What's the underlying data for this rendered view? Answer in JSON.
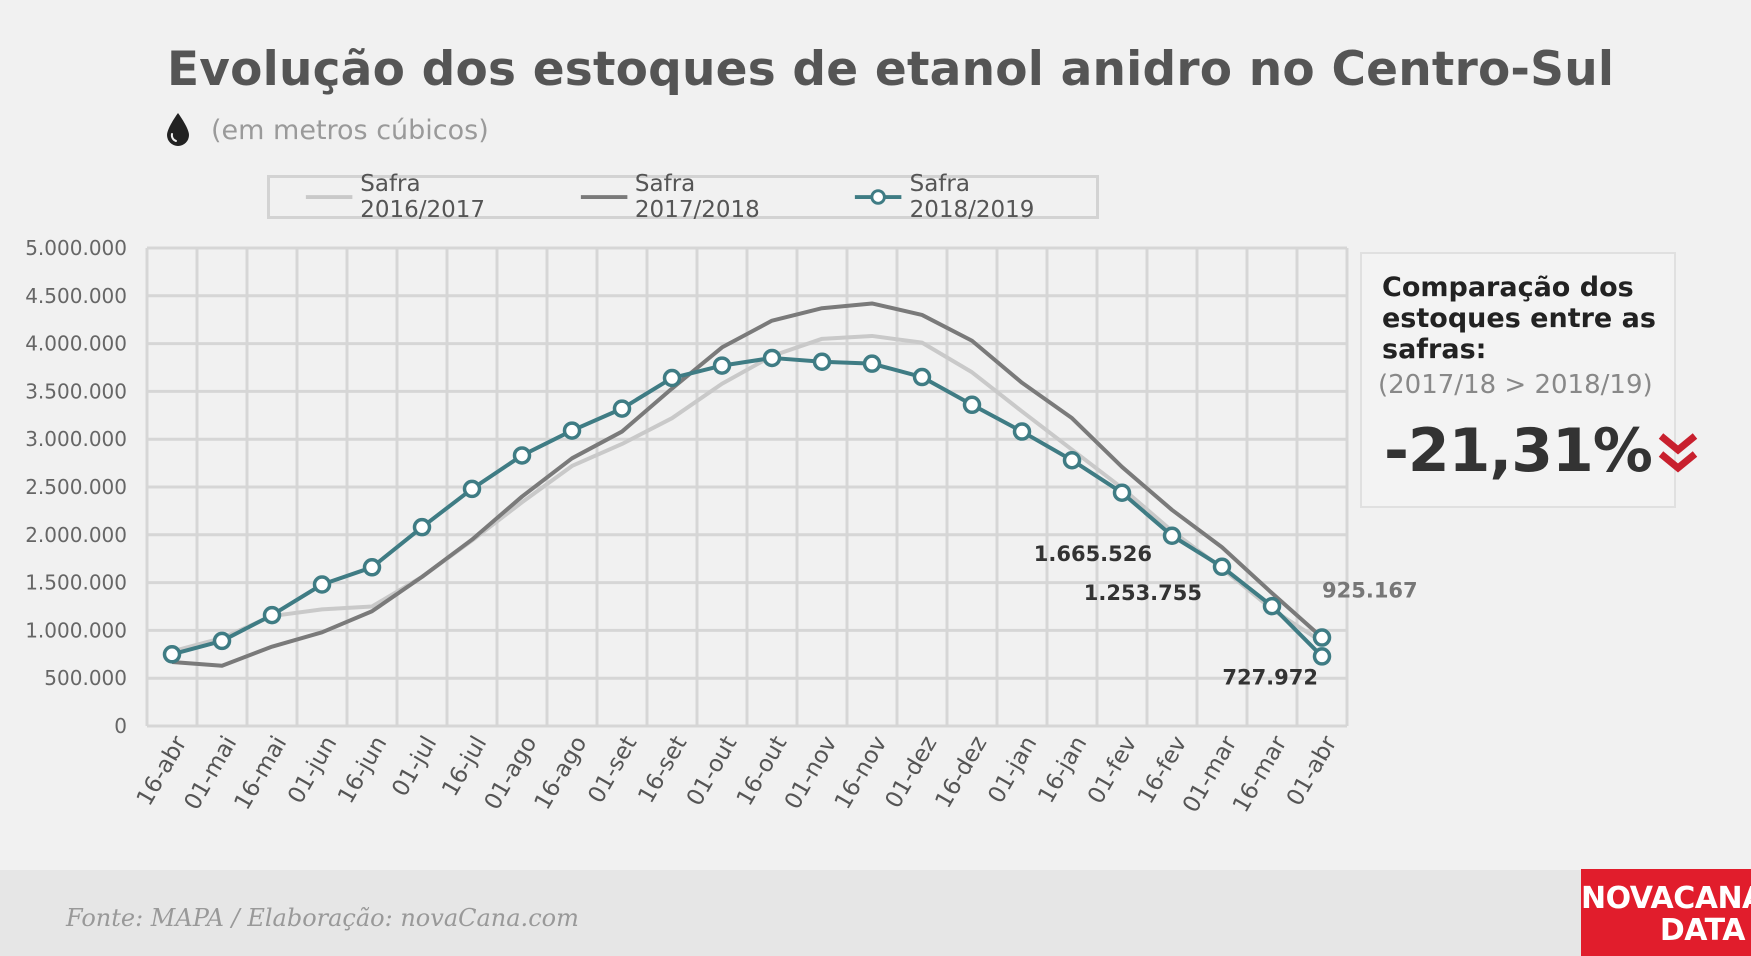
{
  "title": "Evolução dos estoques de etanol anidro no Centro-Sul",
  "subtitle": "(em metros cúbicos)",
  "comparison": {
    "title": "Comparação dos estoques entre as safras:",
    "subtitle": "(2017/18 > 2018/19)",
    "value": "-21,31%",
    "accent": "#c8202e"
  },
  "source": "Fonte: MAPA  / Elaboração: novaCana.com",
  "logo": {
    "line1": "NOVACANA",
    "line2": "DATA"
  },
  "chart_data": {
    "type": "line",
    "categories": [
      "16-abr",
      "01-mai",
      "16-mai",
      "01-jun",
      "16-jun",
      "01-jul",
      "16-jul",
      "01-ago",
      "16-ago",
      "01-set",
      "16-set",
      "01-out",
      "16-out",
      "01-nov",
      "16-nov",
      "01-dez",
      "16-dez",
      "01-jan",
      "16-jan",
      "01-fev",
      "16-fev",
      "01-mar",
      "16-mar",
      "01-abr"
    ],
    "y_ticks": [
      "0",
      "500.000",
      "1.000.000",
      "1.500.000",
      "2.000.000",
      "2.500.000",
      "3.000.000",
      "3.500.000",
      "4.000.000",
      "4.500.000",
      "5.000.000"
    ],
    "ylim": [
      0,
      5000000
    ],
    "grid": true,
    "legend": "top",
    "series": [
      {
        "name": "Safra 2016/2017",
        "color": "#c9c9c9",
        "markers": false,
        "values": [
          780000,
          920000,
          1150000,
          1220000,
          1250000,
          1560000,
          1940000,
          2340000,
          2720000,
          2950000,
          3220000,
          3580000,
          3870000,
          4050000,
          4080000,
          4010000,
          3700000,
          3290000,
          2890000,
          2490000,
          2040000,
          1650000,
          1220000,
          880000
        ]
      },
      {
        "name": "Safra 2017/2018",
        "color": "#7a7a7a",
        "markers": false,
        "values": [
          670000,
          630000,
          830000,
          980000,
          1200000,
          1560000,
          1950000,
          2400000,
          2800000,
          3080000,
          3530000,
          3960000,
          4240000,
          4370000,
          4420000,
          4300000,
          4030000,
          3590000,
          3220000,
          2710000,
          2260000,
          1870000,
          1390000,
          925167
        ]
      },
      {
        "name": "Safra 2018/2019",
        "color": "#3f7c84",
        "markers": true,
        "values": [
          750000,
          890000,
          1160000,
          1480000,
          1660000,
          2080000,
          2480000,
          2830000,
          3090000,
          3320000,
          3640000,
          3770000,
          3850000,
          3810000,
          3790000,
          3650000,
          3360000,
          3080000,
          2780000,
          2440000,
          1990000,
          1665526,
          1253755,
          727972
        ]
      }
    ],
    "annotations": [
      {
        "text": "1.665.526",
        "series": 2,
        "index": 21
      },
      {
        "text": "1.253.755",
        "series": 2,
        "index": 22
      },
      {
        "text": "727.972",
        "series": 2,
        "index": 23
      },
      {
        "text": "925.167",
        "series": 1,
        "index": 23
      }
    ]
  }
}
